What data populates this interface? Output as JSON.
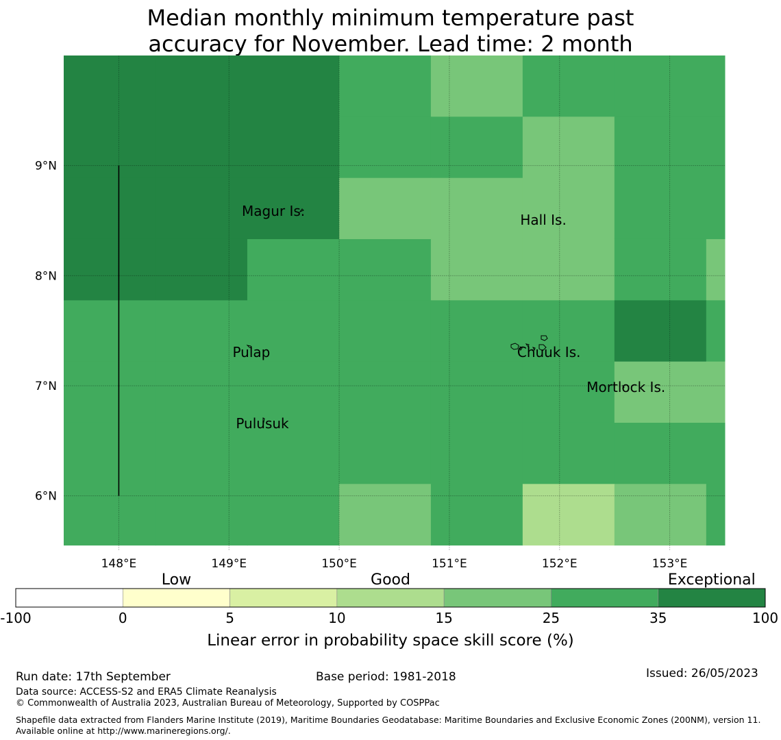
{
  "title": {
    "line1": "Median monthly minimum temperature past",
    "line2": "accuracy for November. Lead time: 2 month"
  },
  "map": {
    "lon_range": [
      147.5,
      153.5
    ],
    "lat_range": [
      5.5,
      10.0
    ],
    "lon_ticks": [
      {
        "value": 148,
        "label": "148°E"
      },
      {
        "value": 149,
        "label": "149°E"
      },
      {
        "value": 150,
        "label": "150°E"
      },
      {
        "value": 151,
        "label": "151°E"
      },
      {
        "value": 152,
        "label": "152°E"
      },
      {
        "value": 153,
        "label": "153°E"
      }
    ],
    "lat_ticks": [
      {
        "value": 9,
        "label": "9°N"
      },
      {
        "value": 8,
        "label": "8°N"
      },
      {
        "value": 7,
        "label": "7°N"
      },
      {
        "value": 6,
        "label": "6°N"
      }
    ],
    "cell_size_deg": [
      0.833,
      0.556
    ],
    "cell_origin": [
      147.5,
      10.0
    ],
    "skill_grid": [
      [
        100,
        100,
        100,
        35,
        25,
        35,
        35,
        35
      ],
      [
        100,
        100,
        100,
        35,
        35,
        25,
        35,
        35
      ],
      [
        100,
        100,
        100,
        25,
        25,
        25,
        35,
        35
      ],
      [
        100,
        100,
        35,
        35,
        25,
        25,
        35,
        25
      ],
      [
        35,
        35,
        35,
        35,
        35,
        35,
        100,
        35
      ],
      [
        35,
        35,
        35,
        35,
        35,
        35,
        25,
        25
      ],
      [
        35,
        35,
        35,
        35,
        35,
        35,
        35,
        35
      ],
      [
        35,
        35,
        35,
        25,
        35,
        15,
        25,
        35
      ]
    ],
    "boundary_line": {
      "lon": 148.0,
      "lat_from": 6.0,
      "lat_to": 9.0
    },
    "places": [
      {
        "name": "Magur Is.",
        "lon": 149.4,
        "lat": 8.58
      },
      {
        "name": "Hall Is.",
        "lon": 151.85,
        "lat": 8.5
      },
      {
        "name": "Pulap",
        "lon": 149.2,
        "lat": 7.3
      },
      {
        "name": "Chuuk Is.",
        "lon": 151.9,
        "lat": 7.3
      },
      {
        "name": "Mortlock Is.",
        "lon": 152.6,
        "lat": 6.98
      },
      {
        "name": "Pulusuk",
        "lon": 149.3,
        "lat": 6.65
      }
    ]
  },
  "colorbar": {
    "categories": [
      {
        "label": "Low",
        "position": 1.5
      },
      {
        "label": "Good",
        "position": 3.5
      },
      {
        "label": "Exceptional",
        "position": 6.5
      }
    ],
    "bins": [
      {
        "from": -100,
        "to": 0,
        "color": "#ffffff"
      },
      {
        "from": 0,
        "to": 5,
        "color": "#ffffcc"
      },
      {
        "from": 5,
        "to": 10,
        "color": "#d9f0a3"
      },
      {
        "from": 10,
        "to": 15,
        "color": "#addd8e"
      },
      {
        "from": 15,
        "to": 25,
        "color": "#78c679"
      },
      {
        "from": 25,
        "to": 35,
        "color": "#41ab5d"
      },
      {
        "from": 35,
        "to": 100,
        "color": "#238443"
      }
    ],
    "tick_labels": [
      "-100",
      "0",
      "5",
      "10",
      "15",
      "25",
      "35",
      "100"
    ],
    "label": "Linear error in probability space skill score (%)"
  },
  "footer": {
    "run_date": "Run date: 17th September",
    "base_period": "Base period: 1981-2018",
    "issued": "Issued: 26/05/2023",
    "data_source": "Data source: ACCESS-S2 and ERA5 Climate Reanalysis",
    "copyright": "© Commonwealth of Australia 2023, Australian Bureau of Meteorology, Supported by COSPPac",
    "shapefile": "Shapefile data extracted from Flanders Marine Institute (2019), Maritime Boundaries Geodatabase: Maritime Boundaries and Exclusive Economic Zones (200NM), version 11. Available online at http://www.marineregions.org/."
  }
}
